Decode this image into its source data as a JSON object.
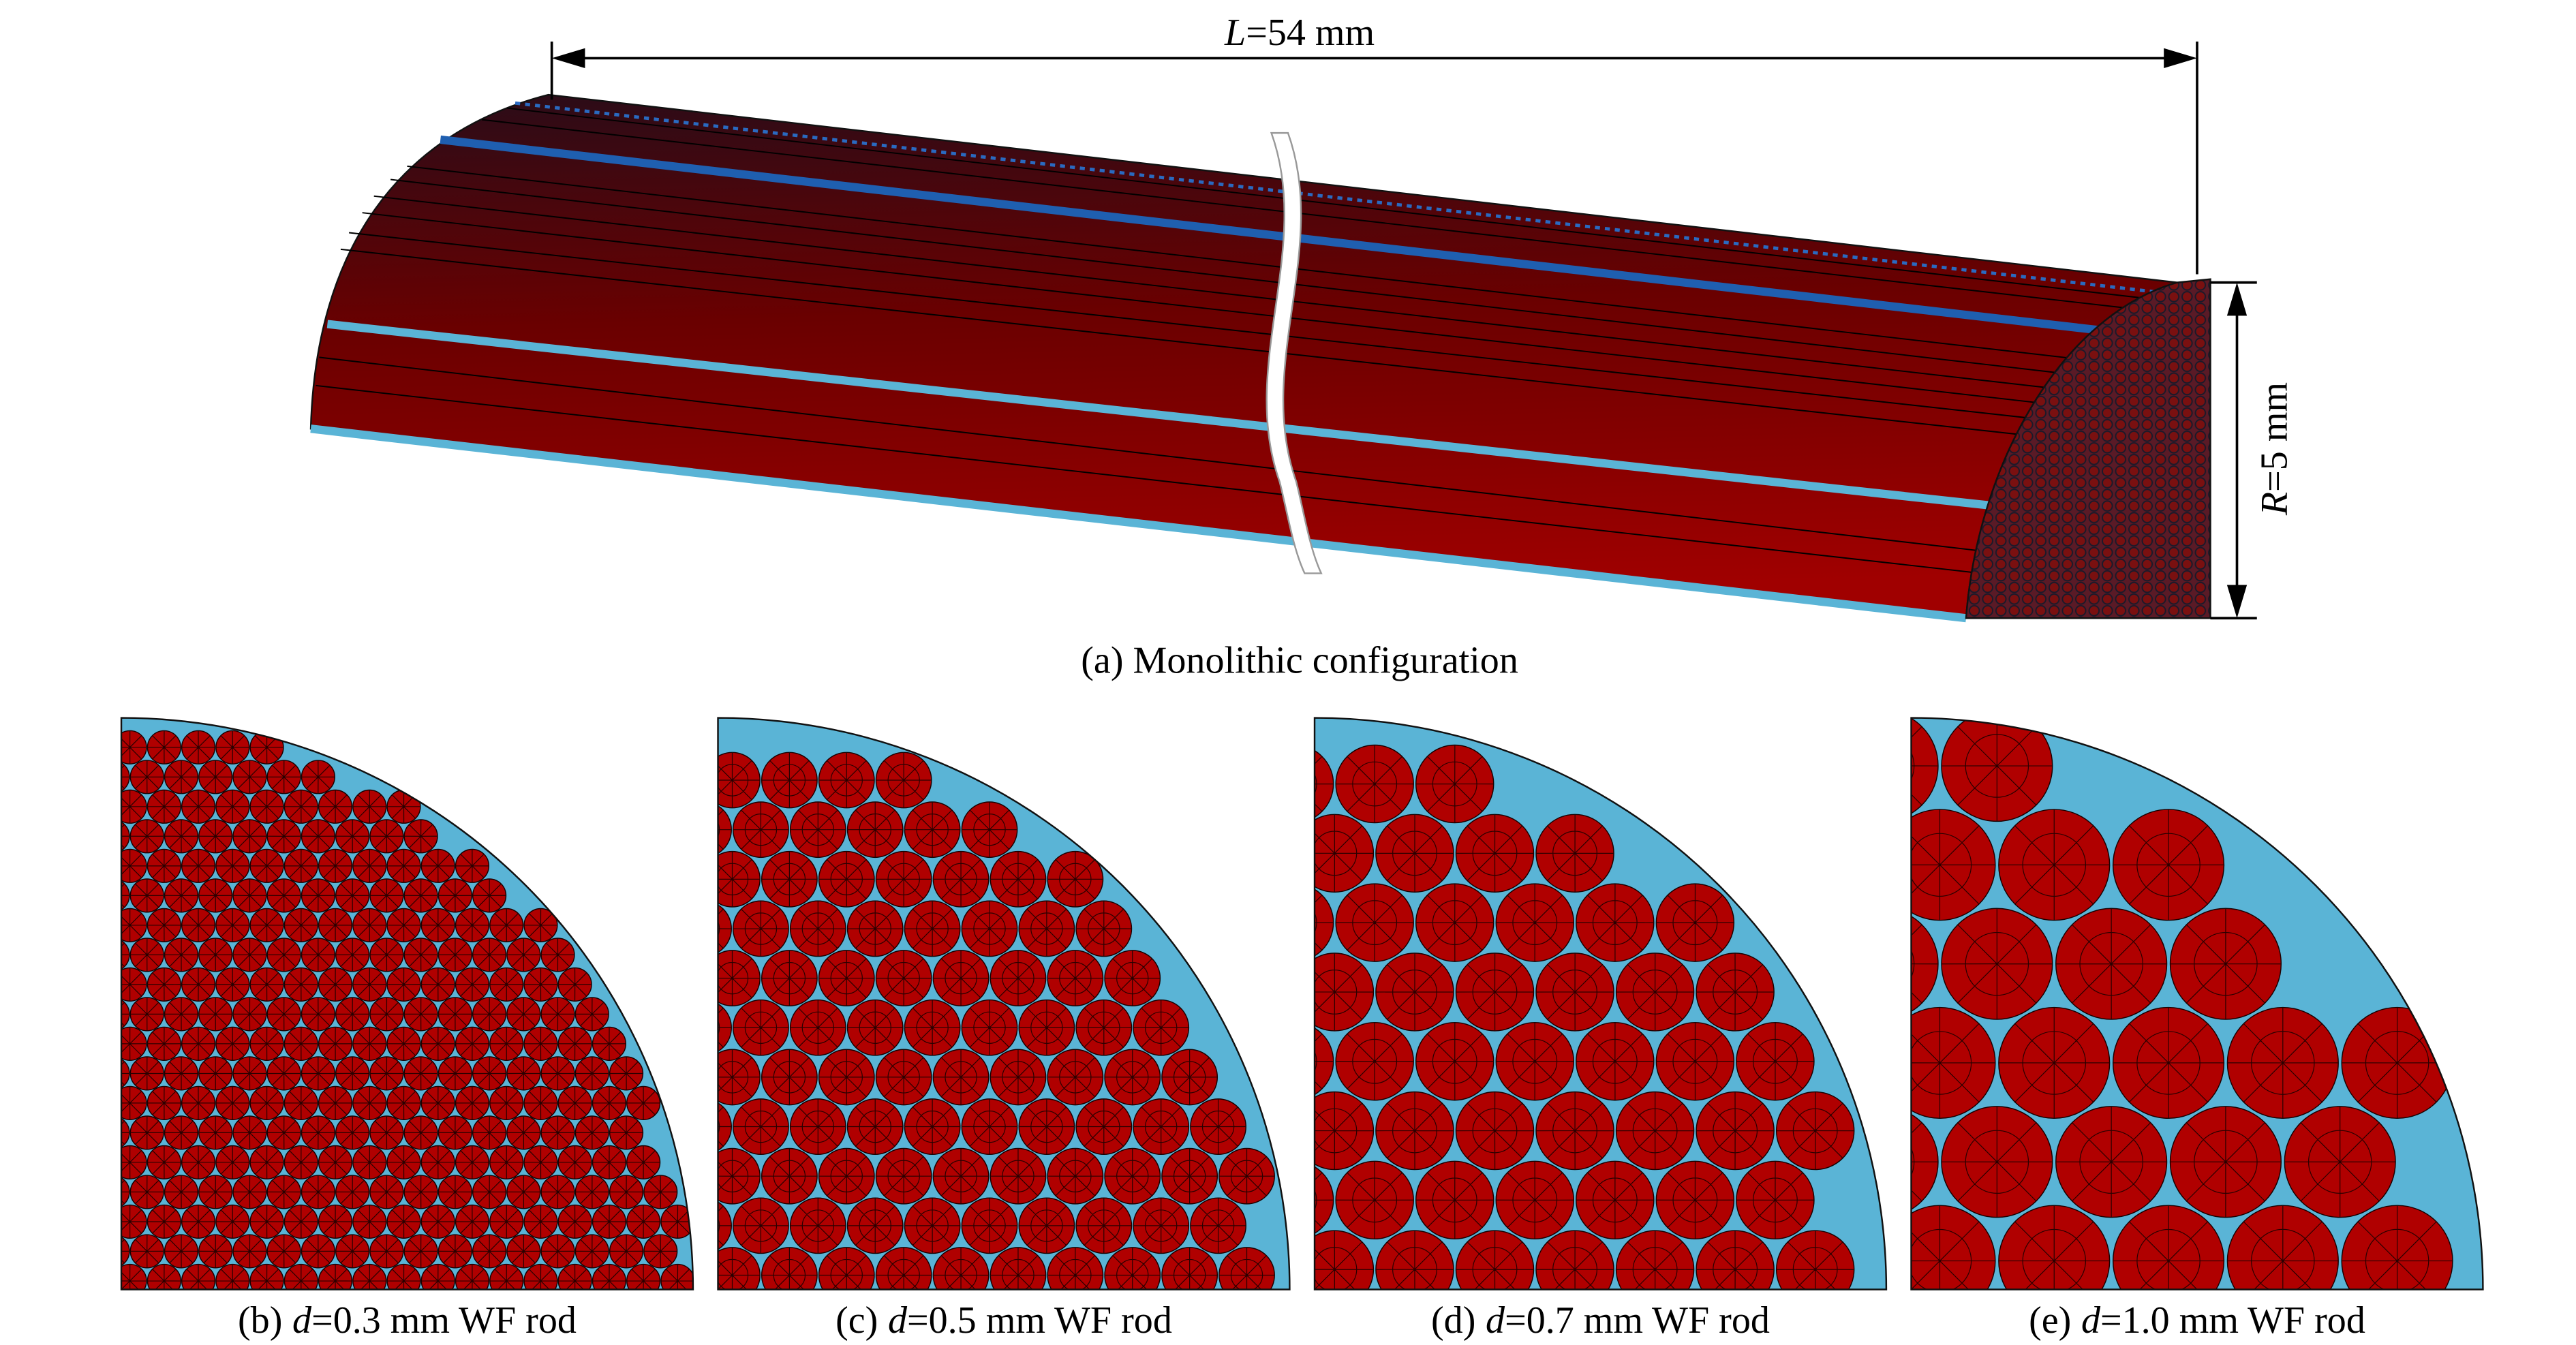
{
  "figure": {
    "dimensions": {
      "length": {
        "symbol": "L",
        "text": "=54 mm"
      },
      "radius": {
        "symbol": "R",
        "text": "=5 mm"
      }
    },
    "monolithic": {
      "caption": "(a) Monolithic configuration"
    },
    "cross_sections": [
      {
        "label": "(b)",
        "symbol": "d",
        "text": "=0.3 mm WF rod"
      },
      {
        "label": "(c)",
        "symbol": "d",
        "text": "=0.5 mm WF rod"
      },
      {
        "label": "(d)",
        "symbol": "d",
        "text": "=0.7 mm WF rod"
      },
      {
        "label": "(e)",
        "symbol": "d",
        "text": "=1.0 mm WF rod"
      }
    ]
  }
}
